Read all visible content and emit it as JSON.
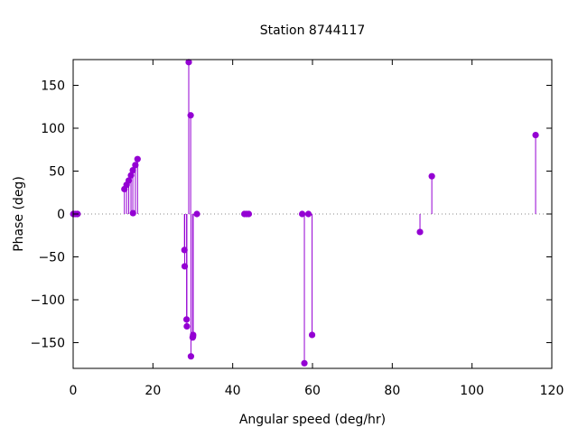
{
  "chart_data": {
    "type": "stem",
    "title": "Station 8744117",
    "xlabel": "Angular speed (deg/hr)",
    "ylabel": "Phase (deg)",
    "xlim": [
      0,
      120
    ],
    "ylim": [
      -180,
      180
    ],
    "xticks": [
      0,
      20,
      40,
      60,
      80,
      100,
      120
    ],
    "yticks": [
      -150,
      -100,
      -50,
      0,
      50,
      100,
      150
    ],
    "grid": false,
    "zero_line": "dotted",
    "color": "#9400d3",
    "points": [
      {
        "x": 0.04,
        "y": 0
      },
      {
        "x": 0.08,
        "y": 0
      },
      {
        "x": 0.54,
        "y": 0
      },
      {
        "x": 1.02,
        "y": 0
      },
      {
        "x": 1.1,
        "y": 0
      },
      {
        "x": 12.85,
        "y": 29
      },
      {
        "x": 13.4,
        "y": 34
      },
      {
        "x": 13.94,
        "y": 39
      },
      {
        "x": 14.5,
        "y": 45
      },
      {
        "x": 14.96,
        "y": 51
      },
      {
        "x": 15.0,
        "y": 1
      },
      {
        "x": 15.6,
        "y": 57
      },
      {
        "x": 16.14,
        "y": 64
      },
      {
        "x": 27.9,
        "y": -42
      },
      {
        "x": 27.97,
        "y": -61
      },
      {
        "x": 28.44,
        "y": -123
      },
      {
        "x": 28.51,
        "y": -131
      },
      {
        "x": 28.98,
        "y": 177
      },
      {
        "x": 29.46,
        "y": 115
      },
      {
        "x": 29.53,
        "y": -166
      },
      {
        "x": 29.96,
        "y": -144
      },
      {
        "x": 30.04,
        "y": -143
      },
      {
        "x": 30.08,
        "y": -141
      },
      {
        "x": 31.02,
        "y": 0
      },
      {
        "x": 42.93,
        "y": 0
      },
      {
        "x": 43.48,
        "y": 0
      },
      {
        "x": 44.03,
        "y": 0
      },
      {
        "x": 57.42,
        "y": 0
      },
      {
        "x": 57.97,
        "y": -174
      },
      {
        "x": 58.98,
        "y": 0
      },
      {
        "x": 59.9,
        "y": -141
      },
      {
        "x": 86.95,
        "y": -21
      },
      {
        "x": 89.92,
        "y": 44
      },
      {
        "x": 115.94,
        "y": 92
      }
    ]
  }
}
